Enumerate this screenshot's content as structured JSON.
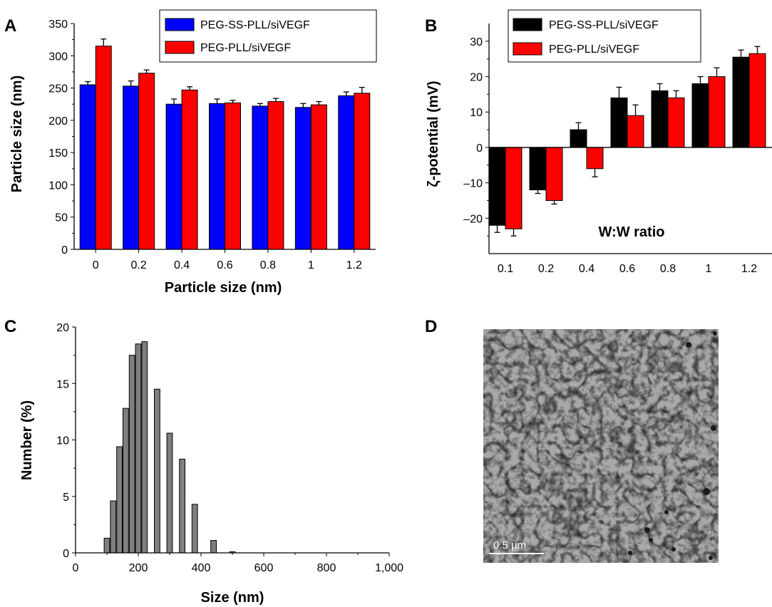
{
  "panels": {
    "a": "A",
    "b": "B",
    "c": "C",
    "d": "D"
  },
  "chart_data": [
    {
      "type": "bar",
      "panel": "A",
      "categories": [
        "0",
        "0.2",
        "0.4",
        "0.6",
        "0.8",
        "1",
        "1.2"
      ],
      "series": [
        {
          "name": "PEG-SS-PLL/siVEGF",
          "color": "#0000ff",
          "values": [
            255,
            253,
            225,
            226,
            222,
            220,
            238
          ],
          "errors": [
            5,
            8,
            8,
            7,
            4,
            6,
            6
          ]
        },
        {
          "name": "PEG-PLL/siVEGF",
          "color": "#ff0000",
          "values": [
            315,
            273,
            247,
            227,
            229,
            224,
            242
          ],
          "errors": [
            11,
            5,
            5,
            4,
            5,
            5,
            9
          ]
        }
      ],
      "xlabel": "Particle size (nm)",
      "ylabel": "Particle size (nm)",
      "ylim": [
        0,
        350
      ],
      "yticks": [
        0,
        50,
        100,
        150,
        200,
        250,
        300,
        350
      ],
      "legend": "top-right"
    },
    {
      "type": "bar",
      "panel": "B",
      "categories": [
        "0.1",
        "0.2",
        "0.4",
        "0.6",
        "0.8",
        "1",
        "1.2"
      ],
      "series": [
        {
          "name": "PEG-SS-PLL/siVEGF",
          "color": "#000000",
          "values": [
            -22,
            -12,
            5,
            14,
            16,
            18,
            25.5
          ],
          "errors": [
            2,
            1,
            2,
            3,
            2,
            2,
            2
          ]
        },
        {
          "name": "PEG-PLL/siVEGF",
          "color": "#ff0000",
          "values": [
            -23,
            -15,
            -6,
            9,
            14,
            20,
            26.5
          ],
          "errors": [
            2,
            1,
            2.3,
            3,
            2,
            2.5,
            2
          ]
        }
      ],
      "xlabel": "W:W ratio",
      "ylabel": "ζ-potential (mV)",
      "ylim": [
        -30,
        35
      ],
      "yticks": [
        -20,
        -10,
        0,
        10,
        20,
        30
      ],
      "ytick_labels": [
        "–20",
        "–10",
        "0",
        "10",
        "20",
        "30"
      ],
      "legend": "top-left"
    },
    {
      "type": "bar",
      "panel": "C",
      "x": [
        100,
        120,
        140,
        160,
        180,
        200,
        220,
        260,
        300,
        340,
        380,
        440,
        500
      ],
      "values": [
        1.3,
        4.6,
        9.4,
        12.8,
        17.5,
        18.5,
        18.7,
        14.5,
        10.6,
        8.3,
        4.3,
        1.1,
        0.1
      ],
      "bin_width": 20,
      "color": "#7f7f7f",
      "xlabel": "Size (nm)",
      "ylabel": "Number (%)",
      "xlim": [
        0,
        1000
      ],
      "ylim": [
        0,
        20
      ],
      "xticks": [
        0,
        200,
        400,
        600,
        800,
        1000
      ],
      "xtick_labels": [
        "0",
        "200",
        "400",
        "600",
        "800",
        "1,000"
      ],
      "yticks": [
        0,
        5,
        10,
        15,
        20
      ]
    }
  ],
  "micrograph": {
    "scale_bar": "0.5 μm"
  }
}
